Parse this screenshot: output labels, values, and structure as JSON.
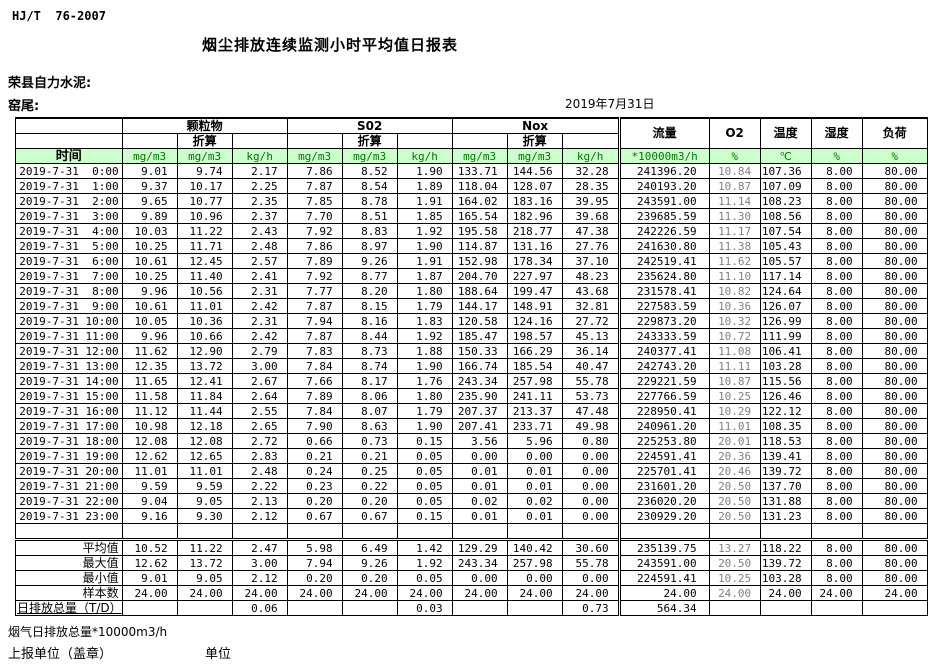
{
  "page": {
    "doc_code": "HJ/T  76-2007",
    "title": "烟尘排放连续监测小时平均值日报表",
    "company": "荣县自力水泥:",
    "site": "窑尾:",
    "date": "2019年7月31日",
    "footer_note": "烟气日排放总量*10000m3/h",
    "footer_report_unit": "上报单位（盖章）",
    "footer_unit": "单位"
  },
  "colors": {
    "header_bg": "#ccffcc",
    "header_text": "#007700",
    "o2_value_text": "#808080",
    "border": "#000000"
  },
  "table": {
    "time_header": "时间",
    "converted_label": "折算",
    "groups": [
      "颗粒物",
      "S02",
      "Nox"
    ],
    "single_cols": [
      "流量",
      "O2",
      "温度",
      "湿度",
      "负荷"
    ],
    "units": [
      "mg/m3",
      "mg/m3",
      "kg/h",
      "mg/m3",
      "mg/m3",
      "kg/h",
      "mg/m3",
      "mg/m3",
      "kg/h",
      "*10000m3/h",
      "%",
      "℃",
      "%",
      "%"
    ],
    "rows": [
      {
        "time": "2019-7-31  0:00",
        "values": [
          "9.01",
          "9.74",
          "2.17",
          "7.86",
          "8.52",
          "1.90",
          "133.71",
          "144.56",
          "32.28",
          "241396.20",
          "10.84",
          "107.36",
          "8.00",
          "80.00"
        ]
      },
      {
        "time": "2019-7-31  1:00",
        "values": [
          "9.37",
          "10.17",
          "2.25",
          "7.87",
          "8.54",
          "1.89",
          "118.04",
          "128.07",
          "28.35",
          "240193.20",
          "10.87",
          "107.09",
          "8.00",
          "80.00"
        ]
      },
      {
        "time": "2019-7-31  2:00",
        "values": [
          "9.65",
          "10.77",
          "2.35",
          "7.85",
          "8.78",
          "1.91",
          "164.02",
          "183.16",
          "39.95",
          "243591.00",
          "11.14",
          "108.23",
          "8.00",
          "80.00"
        ]
      },
      {
        "time": "2019-7-31  3:00",
        "values": [
          "9.89",
          "10.96",
          "2.37",
          "7.70",
          "8.51",
          "1.85",
          "165.54",
          "182.96",
          "39.68",
          "239685.59",
          "11.30",
          "108.56",
          "8.00",
          "80.00"
        ]
      },
      {
        "time": "2019-7-31  4:00",
        "values": [
          "10.03",
          "11.22",
          "2.43",
          "7.92",
          "8.83",
          "1.92",
          "195.58",
          "218.77",
          "47.38",
          "242226.59",
          "11.17",
          "107.54",
          "8.00",
          "80.00"
        ]
      },
      {
        "time": "2019-7-31  5:00",
        "values": [
          "10.25",
          "11.71",
          "2.48",
          "7.86",
          "8.97",
          "1.90",
          "114.87",
          "131.16",
          "27.76",
          "241630.80",
          "11.38",
          "105.43",
          "8.00",
          "80.00"
        ]
      },
      {
        "time": "2019-7-31  6:00",
        "values": [
          "10.61",
          "12.45",
          "2.57",
          "7.89",
          "9.26",
          "1.91",
          "152.98",
          "178.34",
          "37.10",
          "242519.41",
          "11.62",
          "105.57",
          "8.00",
          "80.00"
        ]
      },
      {
        "time": "2019-7-31  7:00",
        "values": [
          "10.25",
          "11.40",
          "2.41",
          "7.92",
          "8.77",
          "1.87",
          "204.70",
          "227.97",
          "48.23",
          "235624.80",
          "11.10",
          "117.14",
          "8.00",
          "80.00"
        ]
      },
      {
        "time": "2019-7-31  8:00",
        "values": [
          "9.96",
          "10.56",
          "2.31",
          "7.77",
          "8.20",
          "1.80",
          "188.64",
          "199.47",
          "43.68",
          "231578.41",
          "10.82",
          "124.64",
          "8.00",
          "80.00"
        ]
      },
      {
        "time": "2019-7-31  9:00",
        "values": [
          "10.61",
          "11.01",
          "2.42",
          "7.87",
          "8.15",
          "1.79",
          "144.17",
          "148.91",
          "32.81",
          "227583.59",
          "10.36",
          "126.07",
          "8.00",
          "80.00"
        ]
      },
      {
        "time": "2019-7-31 10:00",
        "values": [
          "10.05",
          "10.36",
          "2.31",
          "7.94",
          "8.16",
          "1.83",
          "120.58",
          "124.16",
          "27.72",
          "229873.20",
          "10.32",
          "126.99",
          "8.00",
          "80.00"
        ]
      },
      {
        "time": "2019-7-31 11:00",
        "values": [
          "9.96",
          "10.66",
          "2.42",
          "7.87",
          "8.44",
          "1.92",
          "185.47",
          "198.57",
          "45.13",
          "243333.59",
          "10.72",
          "111.99",
          "8.00",
          "80.00"
        ]
      },
      {
        "time": "2019-7-31 12:00",
        "values": [
          "11.62",
          "12.90",
          "2.79",
          "7.83",
          "8.73",
          "1.88",
          "150.33",
          "166.29",
          "36.14",
          "240377.41",
          "11.08",
          "106.41",
          "8.00",
          "80.00"
        ]
      },
      {
        "time": "2019-7-31 13:00",
        "values": [
          "12.35",
          "13.72",
          "3.00",
          "7.84",
          "8.74",
          "1.90",
          "166.74",
          "185.54",
          "40.47",
          "242743.20",
          "11.11",
          "103.28",
          "8.00",
          "80.00"
        ]
      },
      {
        "time": "2019-7-31 14:00",
        "values": [
          "11.65",
          "12.41",
          "2.67",
          "7.66",
          "8.17",
          "1.76",
          "243.34",
          "257.98",
          "55.78",
          "229221.59",
          "10.87",
          "115.56",
          "8.00",
          "80.00"
        ]
      },
      {
        "time": "2019-7-31 15:00",
        "values": [
          "11.58",
          "11.84",
          "2.64",
          "7.89",
          "8.06",
          "1.80",
          "235.90",
          "241.11",
          "53.73",
          "227766.59",
          "10.25",
          "126.46",
          "8.00",
          "80.00"
        ]
      },
      {
        "time": "2019-7-31 16:00",
        "values": [
          "11.12",
          "11.44",
          "2.55",
          "7.84",
          "8.07",
          "1.79",
          "207.37",
          "213.37",
          "47.48",
          "228950.41",
          "10.29",
          "122.12",
          "8.00",
          "80.00"
        ]
      },
      {
        "time": "2019-7-31 17:00",
        "values": [
          "10.98",
          "12.18",
          "2.65",
          "7.90",
          "8.63",
          "1.90",
          "207.41",
          "233.71",
          "49.98",
          "240961.20",
          "11.01",
          "108.35",
          "8.00",
          "80.00"
        ]
      },
      {
        "time": "2019-7-31 18:00",
        "values": [
          "12.08",
          "12.08",
          "2.72",
          "0.66",
          "0.73",
          "0.15",
          "3.56",
          "5.96",
          "0.80",
          "225253.80",
          "20.01",
          "118.53",
          "8.00",
          "80.00"
        ]
      },
      {
        "time": "2019-7-31 19:00",
        "values": [
          "12.62",
          "12.65",
          "2.83",
          "0.21",
          "0.21",
          "0.05",
          "0.00",
          "0.00",
          "0.00",
          "224591.41",
          "20.36",
          "139.41",
          "8.00",
          "80.00"
        ]
      },
      {
        "time": "2019-7-31 20:00",
        "values": [
          "11.01",
          "11.01",
          "2.48",
          "0.24",
          "0.25",
          "0.05",
          "0.01",
          "0.01",
          "0.00",
          "225701.41",
          "20.46",
          "139.72",
          "8.00",
          "80.00"
        ]
      },
      {
        "time": "2019-7-31 21:00",
        "values": [
          "9.59",
          "9.59",
          "2.22",
          "0.23",
          "0.22",
          "0.05",
          "0.01",
          "0.01",
          "0.00",
          "231601.20",
          "20.50",
          "137.70",
          "8.00",
          "80.00"
        ]
      },
      {
        "time": "2019-7-31 22:00",
        "values": [
          "9.04",
          "9.05",
          "2.13",
          "0.20",
          "0.20",
          "0.05",
          "0.02",
          "0.02",
          "0.00",
          "236020.20",
          "20.50",
          "131.88",
          "8.00",
          "80.00"
        ]
      },
      {
        "time": "2019-7-31 23:00",
        "values": [
          "9.16",
          "9.30",
          "2.12",
          "0.67",
          "0.67",
          "0.15",
          "0.01",
          "0.01",
          "0.00",
          "230929.20",
          "20.50",
          "131.23",
          "8.00",
          "80.00"
        ]
      }
    ],
    "summary": [
      {
        "label": "平均值",
        "values": [
          "10.52",
          "11.22",
          "2.47",
          "5.98",
          "6.49",
          "1.42",
          "129.29",
          "140.42",
          "30.60",
          "235139.75",
          "13.27",
          "118.22",
          "8.00",
          "80.00"
        ]
      },
      {
        "label": "最大值",
        "values": [
          "12.62",
          "13.72",
          "3.00",
          "7.94",
          "9.26",
          "1.92",
          "243.34",
          "257.98",
          "55.78",
          "243591.00",
          "20.50",
          "139.72",
          "8.00",
          "80.00"
        ]
      },
      {
        "label": "最小值",
        "values": [
          "9.01",
          "9.05",
          "2.12",
          "0.20",
          "0.20",
          "0.05",
          "0.00",
          "0.00",
          "0.00",
          "224591.41",
          "10.25",
          "103.28",
          "8.00",
          "80.00"
        ]
      },
      {
        "label": "样本数",
        "values": [
          "24.00",
          "24.00",
          "24.00",
          "24.00",
          "24.00",
          "24.00",
          "24.00",
          "24.00",
          "24.00",
          "24.00",
          "24.00",
          "24.00",
          "24.00",
          "24.00"
        ]
      }
    ],
    "total_row": {
      "label": "日排放总量（T/D）",
      "values": [
        "",
        "",
        "0.06",
        "",
        "",
        "0.03",
        "",
        "",
        "0.73",
        "564.34",
        "",
        "",
        "",
        ""
      ]
    }
  }
}
